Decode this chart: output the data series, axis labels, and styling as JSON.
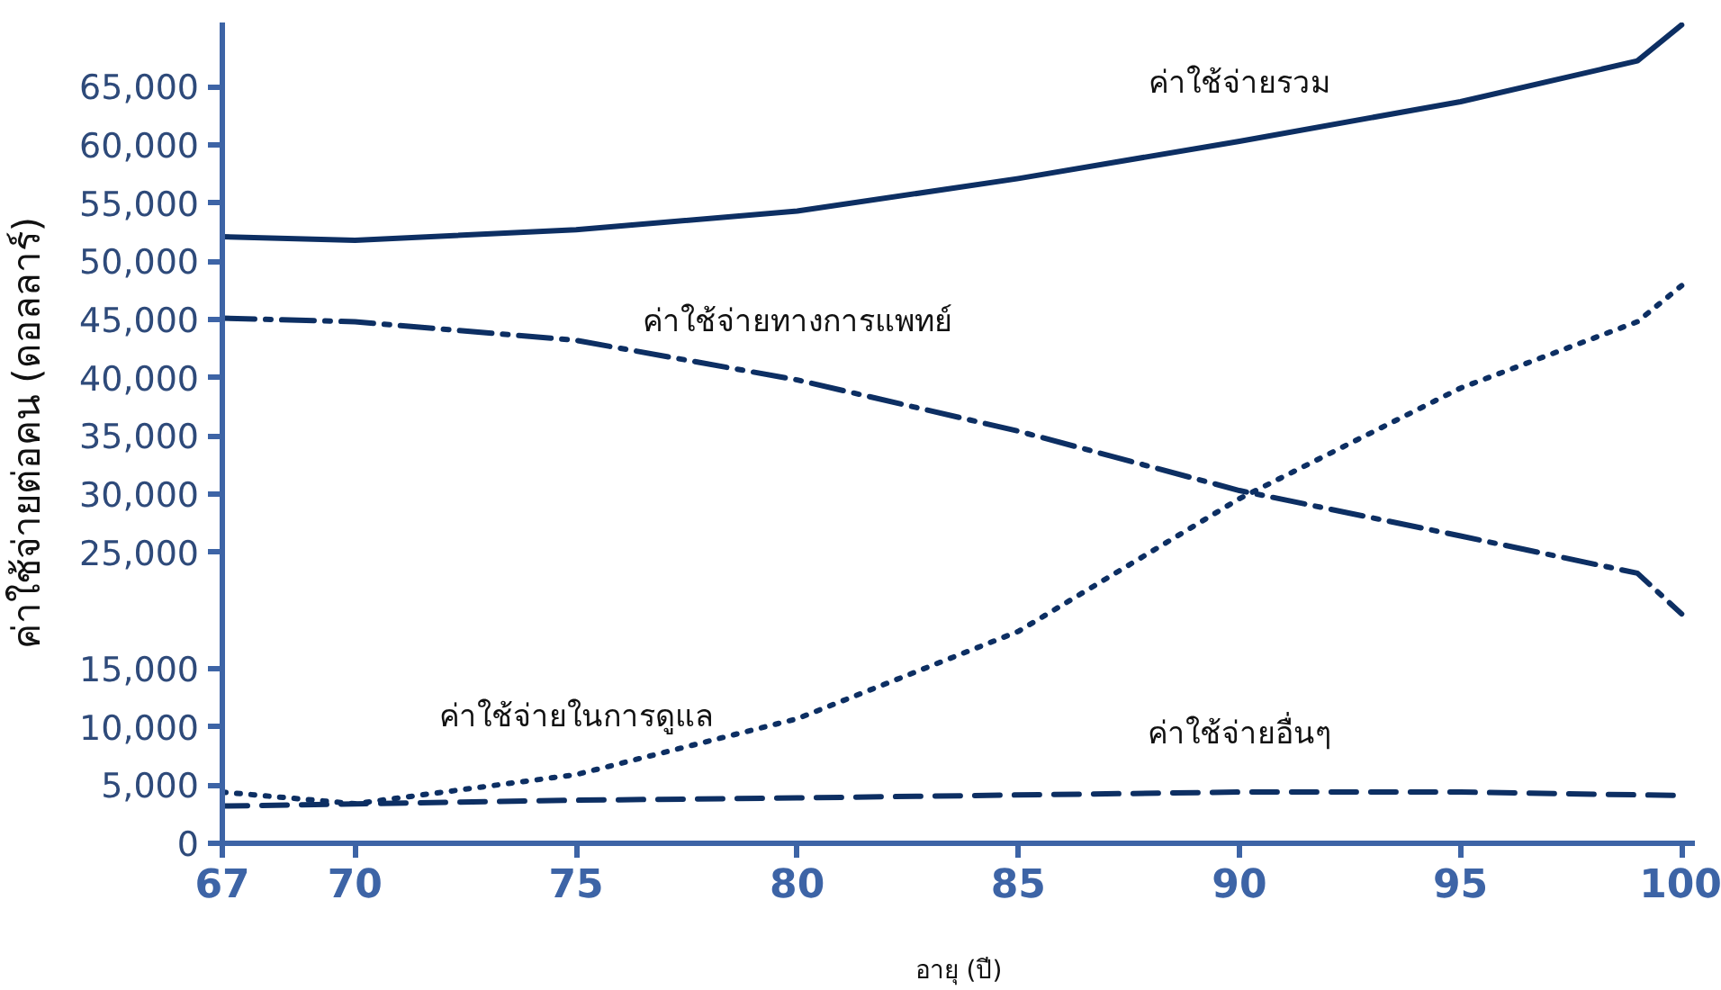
{
  "chart_data": {
    "type": "line",
    "xlabel": "อายุ (ปี)",
    "ylabel": "ค่าใช้จ่ายต่อคน (ดอลลาร์)",
    "xlim": [
      67,
      100.3
    ],
    "xticks": [
      67,
      70,
      75,
      80,
      85,
      90,
      95,
      100
    ],
    "ylim": [
      0,
      70500
    ],
    "yticks": [
      0,
      {
        "value": 5000,
        "label": "5,000"
      },
      {
        "value": 10000,
        "label": "10,000"
      },
      {
        "value": 15000,
        "label": "15,000"
      },
      {
        "value": 25000,
        "label": "25,000"
      },
      {
        "value": 30000,
        "label": "30,000"
      },
      {
        "value": 35000,
        "label": "35,000"
      },
      {
        "value": 40000,
        "label": "40,000"
      },
      {
        "value": 45000,
        "label": "45,000"
      },
      {
        "value": 50000,
        "label": "50,000"
      },
      {
        "value": 55000,
        "label": "55,000"
      },
      {
        "value": 60000,
        "label": "60,000"
      },
      {
        "value": 65000,
        "label": "65,000"
      }
    ],
    "x": [
      67,
      70,
      75,
      80,
      85,
      90,
      95,
      99,
      100
    ],
    "series": [
      {
        "color": "#0d2f63",
        "line_style": "solid",
        "values": [
          52100,
          51800,
          52700,
          54300,
          57100,
          60300,
          63700,
          67200,
          70300
        ]
      },
      {
        "color": "#0d2f63",
        "line_style": "dashdot",
        "values": [
          45100,
          44800,
          43200,
          39800,
          35400,
          30300,
          26400,
          23200,
          19700
        ]
      },
      {
        "color": "#0d2f63",
        "line_style": "dotted",
        "values": [
          4400,
          3400,
          5900,
          10700,
          18200,
          29600,
          39100,
          44800,
          47900
        ]
      },
      {
        "color": "#0d2f63",
        "line_style": "dashed",
        "x": [
          67,
          75,
          80,
          90,
          95,
          100
        ],
        "values": [
          3200,
          3700,
          3900,
          4400,
          4400,
          4100
        ]
      }
    ],
    "annotations": [
      {
        "text": "ค่าใช้จ่ายรวม",
        "x": 90,
        "y": 60300
      },
      {
        "text": "ค่าใช้จ่ายทางการแพทย์",
        "x": 80,
        "y": 39800
      },
      {
        "text": "ค่าใช้จ่ายในการดูแล",
        "x": 75,
        "y": 5900
      },
      {
        "text": "ค่าใช้จ่ายอื่นๆ",
        "x": 90,
        "y": 4400
      }
    ]
  }
}
